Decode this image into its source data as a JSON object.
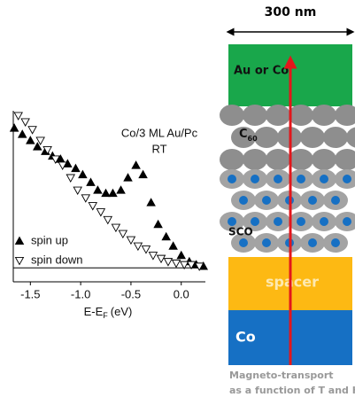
{
  "chart_data": {
    "type": "scatter",
    "annotations": [
      "Co/3 ML Au/Pc",
      "RT"
    ],
    "xlabel": {
      "main": "E-E",
      "sub": "F",
      "unit": "(eV)"
    },
    "xlim": [
      -1.67,
      0.24
    ],
    "ylim": [
      -9,
      100
    ],
    "xticks": [
      -1.5,
      {
        "value": -1.0,
        "label": "-1.0"
      },
      -0.5,
      {
        "value": 0.0,
        "label": "0.0"
      }
    ],
    "hlines": [
      0
    ],
    "legend": "lower left",
    "series": [
      {
        "name": "spin up",
        "color": "#000000",
        "marker": "triangle-up-filled",
        "x": [
          -1.66,
          -1.58,
          -1.5,
          -1.43,
          -1.35,
          -1.28,
          -1.2,
          -1.13,
          -1.05,
          -0.98,
          -0.9,
          -0.83,
          -0.75,
          -0.68,
          -0.6,
          -0.53,
          -0.45,
          -0.38,
          -0.3,
          -0.23,
          -0.15,
          -0.08,
          0.0,
          0.08,
          0.15,
          0.22
        ],
        "values": [
          90,
          86,
          82,
          78,
          75,
          72,
          70,
          67,
          64,
          60,
          55,
          50,
          48,
          48,
          50,
          58,
          66,
          60,
          42,
          28,
          20,
          14,
          8,
          4,
          2,
          1
        ]
      },
      {
        "name": "spin down",
        "color": "#000000",
        "marker": "triangle-down-open",
        "x": [
          -1.62,
          -1.55,
          -1.48,
          -1.4,
          -1.33,
          -1.25,
          -1.18,
          -1.1,
          -1.03,
          -0.95,
          -0.88,
          -0.8,
          -0.73,
          -0.65,
          -0.58,
          -0.5,
          -0.43,
          -0.35,
          -0.28,
          -0.2,
          -0.13,
          -0.05,
          0.03,
          0.1,
          0.18
        ],
        "values": [
          98,
          94,
          89,
          82,
          76,
          70,
          66,
          58,
          50,
          45,
          40,
          36,
          31,
          26,
          22,
          18,
          14,
          12,
          8,
          6,
          4,
          3,
          2,
          2,
          1
        ]
      }
    ]
  },
  "diagram": {
    "width_label": "300 nm",
    "layers": {
      "top": "Au or Co",
      "c60": {
        "main": "C",
        "sub": "60"
      },
      "sco": "SCO",
      "spacer": "spacer",
      "bottom": "Co"
    },
    "caption": [
      "Magneto-transport",
      "as a function of T and H"
    ]
  }
}
